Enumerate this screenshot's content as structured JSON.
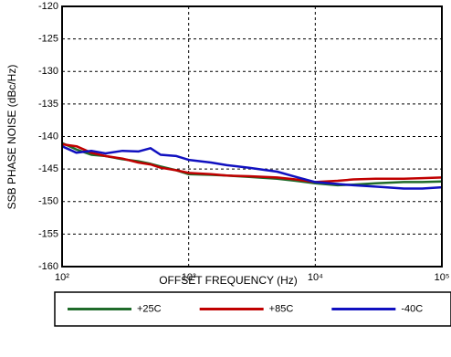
{
  "chart_data": {
    "type": "line",
    "xlabel": "OFFSET FREQUENCY (Hz)",
    "ylabel": "SSB PHASE NOISE (dBc/Hz)",
    "xscale": "log",
    "grid": true,
    "legend": "bottom",
    "x": [
      100,
      130,
      170,
      220,
      300,
      400,
      500,
      600,
      800,
      1000,
      1500,
      2000,
      3000,
      5000,
      7000,
      10000,
      15000,
      20000,
      30000,
      50000,
      70000,
      100000
    ],
    "series": [
      {
        "name": "+25C",
        "color": "#1f6b2a",
        "values": [
          -141,
          -142,
          -142.8,
          -143,
          -143.5,
          -143.8,
          -144.2,
          -144.6,
          -145.2,
          -145.8,
          -145.9,
          -146,
          -146.2,
          -146.5,
          -146.8,
          -147.2,
          -147.5,
          -147.4,
          -147.2,
          -147,
          -147,
          -146.9
        ]
      },
      {
        "name": "+85C",
        "color": "#c00000",
        "values": [
          -141.2,
          -141.5,
          -142.5,
          -143,
          -143.4,
          -144,
          -144.3,
          -144.8,
          -145.2,
          -145.6,
          -145.8,
          -146,
          -146.1,
          -146.3,
          -146.6,
          -147,
          -146.8,
          -146.6,
          -146.5,
          -146.5,
          -146.4,
          -146.3
        ]
      },
      {
        "name": "-40C",
        "color": "#1010c0",
        "values": [
          -141.5,
          -142.5,
          -142.2,
          -142.6,
          -142.2,
          -142.3,
          -141.8,
          -142.8,
          -143,
          -143.6,
          -144,
          -144.4,
          -144.8,
          -145.4,
          -146.2,
          -147,
          -147.3,
          -147.5,
          -147.7,
          -148,
          -148,
          -147.8
        ]
      }
    ],
    "xlim": [
      100,
      100000
    ],
    "xticks": [
      {
        "value": 100,
        "label": "10²"
      },
      {
        "value": 1000,
        "label": "10³"
      },
      {
        "value": 10000,
        "label": "10⁴"
      },
      {
        "value": 100000,
        "label": "10⁵"
      }
    ],
    "ylim": [
      -160,
      -120
    ],
    "yticks": [
      -120,
      -125,
      -130,
      -135,
      -140,
      -145,
      -150,
      -155,
      -160
    ]
  }
}
